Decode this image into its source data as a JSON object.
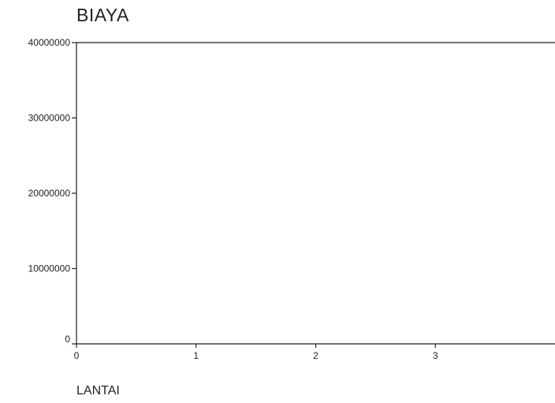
{
  "chart_data": {
    "type": "scatter",
    "title": "BIAYA",
    "xlabel": "LANTAI",
    "ylabel": "",
    "xlim": [
      0,
      4
    ],
    "ylim": [
      0,
      40000000
    ],
    "x_ticks": [
      "0",
      "1",
      "2",
      "3"
    ],
    "y_ticks": [
      "0",
      "10000000",
      "20000000",
      "30000000",
      "40000000"
    ],
    "x_tick_values": [
      0,
      1,
      2,
      3
    ],
    "y_tick_values": [
      0,
      10000000,
      20000000,
      30000000,
      40000000
    ],
    "series": [],
    "grid": false,
    "axis_color": "#222222"
  }
}
